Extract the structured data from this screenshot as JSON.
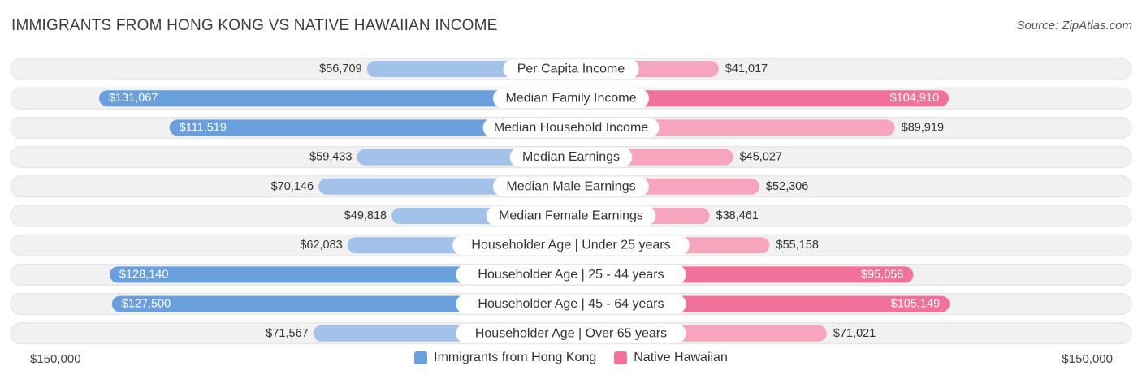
{
  "header": {
    "title": "IMMIGRANTS FROM HONG KONG VS NATIVE HAWAIIAN INCOME",
    "source": "Source: ZipAtlas.com"
  },
  "colors": {
    "left_dark": "#6a9fde",
    "left_light": "#a2c2ea",
    "right_dark": "#f2719a",
    "right_light": "#f7a4bf",
    "track": "#f1f1f1"
  },
  "chart_data": {
    "type": "bar",
    "orientation": "horizontal-diverging",
    "title": "IMMIGRANTS FROM HONG KONG VS NATIVE HAWAIIAN INCOME",
    "xlim": [
      -150000,
      150000
    ],
    "axis_labels": {
      "left": "$150,000",
      "right": "$150,000"
    },
    "categories": [
      "Per Capita Income",
      "Median Family Income",
      "Median Household Income",
      "Median Earnings",
      "Median Male Earnings",
      "Median Female Earnings",
      "Householder Age | Under 25 years",
      "Householder Age | 25 - 44 years",
      "Householder Age | 45 - 64 years",
      "Householder Age | Over 65 years"
    ],
    "series": [
      {
        "name": "Immigrants from Hong Kong",
        "values": [
          56709,
          131067,
          111519,
          59433,
          70146,
          49818,
          62083,
          128140,
          127500,
          71567
        ],
        "labels": [
          "$56,709",
          "$131,067",
          "$111,519",
          "$59,433",
          "$70,146",
          "$49,818",
          "$62,083",
          "$128,140",
          "$127,500",
          "$71,567"
        ]
      },
      {
        "name": "Native Hawaiian",
        "values": [
          41017,
          104910,
          89919,
          45027,
          52306,
          38461,
          55158,
          95058,
          105149,
          71021
        ],
        "labels": [
          "$41,017",
          "$104,910",
          "$89,919",
          "$45,027",
          "$52,306",
          "$38,461",
          "$55,158",
          "$95,058",
          "$105,149",
          "$71,021"
        ]
      }
    ],
    "legend": [
      "Immigrants from Hong Kong",
      "Native Hawaiian"
    ]
  }
}
